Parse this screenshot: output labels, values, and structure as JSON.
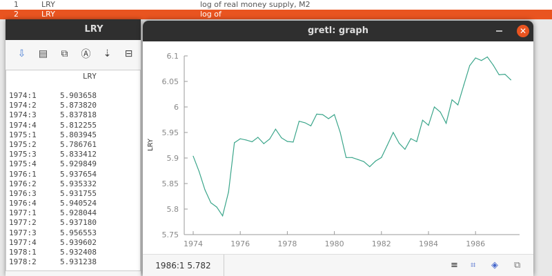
{
  "background_list": {
    "row1": {
      "index": "1",
      "name": "LRY",
      "desc": "log of real money supply, M2"
    },
    "row2": {
      "index": "2",
      "name": "LRY",
      "desc": "log of"
    }
  },
  "data_window": {
    "title": "LRY",
    "toolbar": [
      "save-icon",
      "print-icon",
      "copy-icon",
      "find-icon",
      "sort-icon",
      "edit-icon"
    ],
    "column_header": "LRY",
    "rows": [
      [
        "1974:1",
        "5.903658"
      ],
      [
        "1974:2",
        "5.873820"
      ],
      [
        "1974:3",
        "5.837818"
      ],
      [
        "1974:4",
        "5.812255"
      ],
      [
        "1975:1",
        "5.803945"
      ],
      [
        "1975:2",
        "5.786761"
      ],
      [
        "1975:3",
        "5.833412"
      ],
      [
        "1975:4",
        "5.929849"
      ],
      [
        "1976:1",
        "5.937654"
      ],
      [
        "1976:2",
        "5.935332"
      ],
      [
        "1976:3",
        "5.931755"
      ],
      [
        "1976:4",
        "5.940524"
      ],
      [
        "1977:1",
        "5.928044"
      ],
      [
        "1977:2",
        "5.937180"
      ],
      [
        "1977:3",
        "5.956553"
      ],
      [
        "1977:4",
        "5.939602"
      ],
      [
        "1978:1",
        "5.932408"
      ],
      [
        "1978:2",
        "5.931238"
      ]
    ]
  },
  "graph_window": {
    "title": "gretl: graph",
    "status_coord": "1986:1 5.782",
    "status_icons": [
      "menu-icon",
      "zoom-icon",
      "fit-icon",
      "export-icon"
    ]
  },
  "chart_data": {
    "type": "line",
    "ylabel": "LRY",
    "xlabel": "",
    "xlim": [
      1974,
      1987.5
    ],
    "ylim": [
      5.75,
      6.1
    ],
    "xticks": [
      "1974",
      "1976",
      "1978",
      "1980",
      "1982",
      "1984",
      "1986"
    ],
    "yticks": [
      "5.75",
      "5.8",
      "5.85",
      "5.9",
      "5.95",
      "6",
      "6.05",
      "6.1"
    ],
    "line_color": "#3aa58a",
    "start": "1974:1",
    "frequency": "quarterly",
    "values": [
      5.903658,
      5.87382,
      5.837818,
      5.812255,
      5.803945,
      5.786761,
      5.833412,
      5.929849,
      5.937654,
      5.935332,
      5.931755,
      5.940524,
      5.928044,
      5.93718,
      5.956553,
      5.939602,
      5.932408,
      5.931238,
      5.972,
      5.969,
      5.963,
      5.986,
      5.985,
      5.977,
      5.985,
      5.95,
      5.901,
      5.901,
      5.897,
      5.893,
      5.883,
      5.894,
      5.901,
      5.925,
      5.95,
      5.929,
      5.917,
      5.938,
      5.932,
      5.974,
      5.964,
      6.0,
      5.99,
      5.968,
      6.014,
      6.004,
      6.043,
      6.081,
      6.096,
      6.091,
      6.098,
      6.082,
      6.063,
      6.064,
      6.053
    ]
  }
}
